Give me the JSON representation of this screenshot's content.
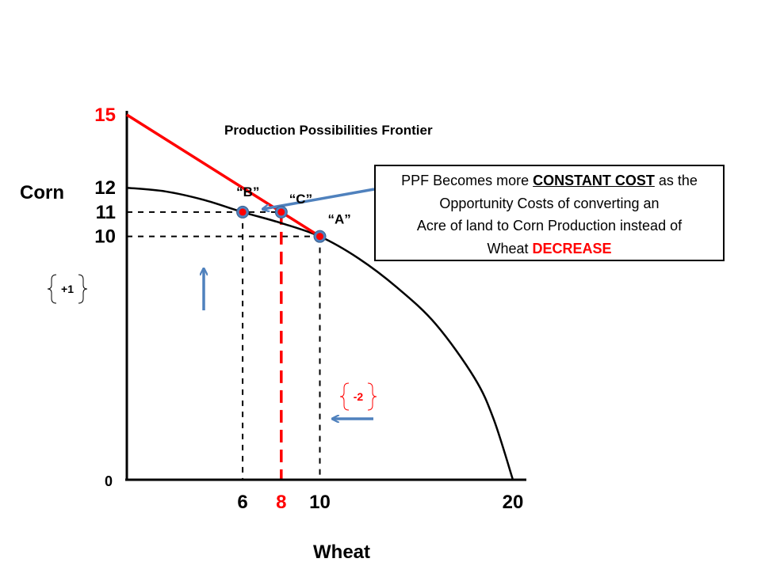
{
  "chart_data": {
    "type": "line",
    "title": "Production Possibilities Frontier",
    "xlabel": "Wheat",
    "ylabel": "Corn",
    "xlim": [
      0,
      20
    ],
    "ylim": [
      0,
      15
    ],
    "x_ticks": [
      {
        "value": 6,
        "label": "6",
        "color": "#000000"
      },
      {
        "value": 8,
        "label": "8",
        "color": "#ff0000"
      },
      {
        "value": 10,
        "label": "10",
        "color": "#000000"
      },
      {
        "value": 20,
        "label": "20",
        "color": "#000000"
      }
    ],
    "y_ticks": [
      {
        "value": 0,
        "label": "0",
        "color": "#000000"
      },
      {
        "value": 10,
        "label": "10",
        "color": "#000000"
      },
      {
        "value": 11,
        "label": "11",
        "color": "#000000"
      },
      {
        "value": 12,
        "label": "12",
        "color": "#000000"
      },
      {
        "value": 15,
        "label": "15",
        "color": "#ff0000"
      }
    ],
    "series": [
      {
        "color": "#000000",
        "style": "curve",
        "points": [
          [
            0,
            12
          ],
          [
            2,
            11.85
          ],
          [
            4,
            11.5
          ],
          [
            6,
            11
          ],
          [
            8,
            10.55
          ],
          [
            10,
            10
          ],
          [
            12,
            9.1
          ],
          [
            14,
            7.9
          ],
          [
            16,
            6.4
          ],
          [
            18,
            4.2
          ],
          [
            19,
            2.5
          ],
          [
            20,
            0
          ]
        ]
      },
      {
        "color": "#ff0000",
        "style": "straight",
        "points": [
          [
            0,
            15
          ],
          [
            10,
            10
          ]
        ]
      }
    ],
    "points": [
      {
        "label": "“A”",
        "x": 10,
        "y": 10
      },
      {
        "label": "“B”",
        "x": 6,
        "y": 11
      },
      {
        "label": "“C”",
        "x": 8,
        "y": 11
      }
    ],
    "guides": {
      "horizontal": [
        11,
        10
      ],
      "vertical_black": [
        6,
        10
      ],
      "vertical_red": [
        8
      ]
    },
    "annotations": {
      "corn_change": "+1",
      "wheat_change": "-2"
    },
    "callout": {
      "line1_pre": "PPF Becomes more ",
      "line1_em": "CONSTANT COST",
      "line1_post": " as the",
      "line2": "Opportunity Costs of converting an",
      "line3": "Acre of land to Corn Production instead of",
      "line4_pre": "Wheat ",
      "line4_em": "DECREASE"
    },
    "colors": {
      "accent": "#ff0000",
      "point_fill": "#4f81bd",
      "arrow": "#4f81bd",
      "axis": "#000000"
    }
  }
}
